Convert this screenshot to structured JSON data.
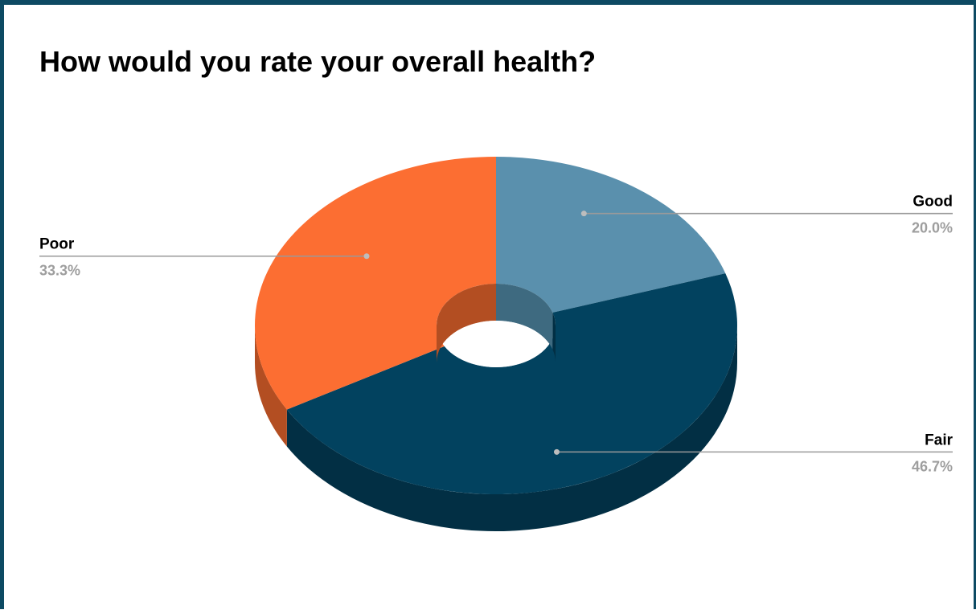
{
  "chart_data": {
    "type": "pie",
    "style": "3d-donut",
    "title": "How would you rate your overall health?",
    "slices": [
      {
        "label": "Good",
        "value": 20.0,
        "display": "20.0%",
        "color": "#5a90ad",
        "side": "#3e6a80",
        "label_side": "right"
      },
      {
        "label": "Fair",
        "value": 46.7,
        "display": "46.7%",
        "color": "#02425f",
        "side": "#022f44",
        "label_side": "right"
      },
      {
        "label": "Poor",
        "value": 33.3,
        "display": "33.3%",
        "color": "#fc6e32",
        "side": "#b34e22",
        "label_side": "left"
      }
    ]
  }
}
